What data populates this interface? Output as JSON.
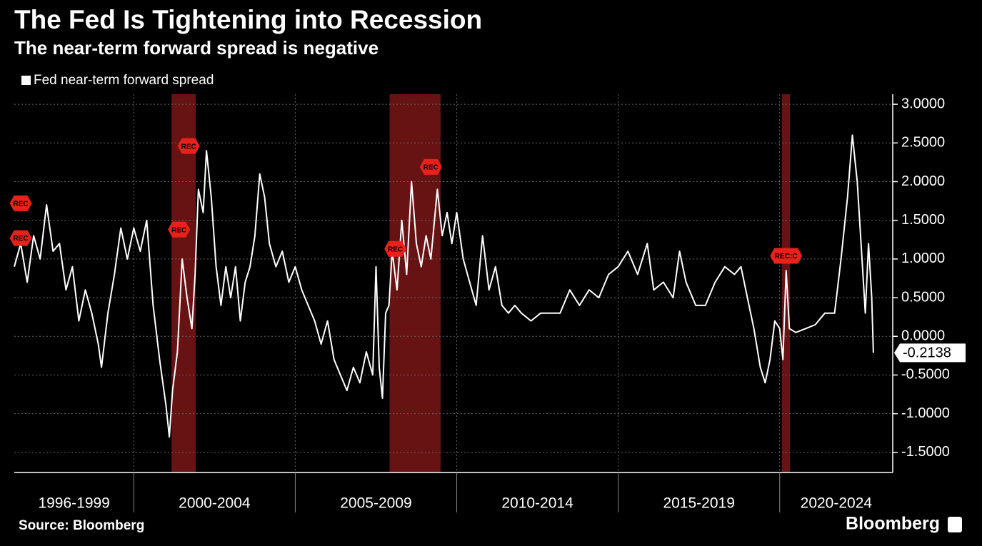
{
  "chart_data": {
    "type": "line",
    "title": "The Fed Is Tightening into Recession",
    "subtitle": "The near-term forward spread is negative",
    "source": "Source: Bloomberg",
    "brand": "Bloomberg",
    "x": [
      1996.3,
      1996.5,
      1996.7,
      1996.9,
      1997.1,
      1997.3,
      1997.5,
      1997.7,
      1997.9,
      1998.1,
      1998.3,
      1998.5,
      1998.7,
      1998.9,
      1999.0,
      1999.2,
      1999.4,
      1999.6,
      1999.8,
      2000.0,
      2000.2,
      2000.4,
      2000.6,
      2000.8,
      2001.0,
      2001.1,
      2001.2,
      2001.35,
      2001.5,
      2001.65,
      2001.8,
      2001.9,
      2002.0,
      2002.15,
      2002.25,
      2002.4,
      2002.55,
      2002.7,
      2002.85,
      2003.0,
      2003.15,
      2003.3,
      2003.45,
      2003.6,
      2003.75,
      2003.9,
      2004.05,
      2004.2,
      2004.4,
      2004.6,
      2004.8,
      2005.0,
      2005.2,
      2005.4,
      2005.6,
      2005.8,
      2006.0,
      2006.2,
      2006.4,
      2006.6,
      2006.8,
      2007.0,
      2007.2,
      2007.4,
      2007.5,
      2007.6,
      2007.7,
      2007.8,
      2007.9,
      2008.0,
      2008.15,
      2008.3,
      2008.45,
      2008.6,
      2008.75,
      2008.9,
      2009.05,
      2009.2,
      2009.4,
      2009.55,
      2009.7,
      2009.85,
      2010.0,
      2010.2,
      2010.4,
      2010.6,
      2010.8,
      2011.0,
      2011.2,
      2011.4,
      2011.6,
      2011.8,
      2012.0,
      2012.3,
      2012.6,
      2012.9,
      2013.2,
      2013.5,
      2013.8,
      2014.1,
      2014.4,
      2014.7,
      2015.0,
      2015.3,
      2015.6,
      2015.9,
      2016.1,
      2016.4,
      2016.7,
      2016.9,
      2017.1,
      2017.4,
      2017.7,
      2018.0,
      2018.3,
      2018.6,
      2018.8,
      2019.0,
      2019.2,
      2019.4,
      2019.55,
      2019.7,
      2019.85,
      2020.0,
      2020.1,
      2020.2,
      2020.3,
      2020.5,
      2020.8,
      2021.1,
      2021.4,
      2021.7,
      2021.9,
      2022.1,
      2022.25,
      2022.4,
      2022.55,
      2022.65,
      2022.75,
      2022.85,
      2022.9
    ],
    "series": [
      {
        "name": "Fed near-term forward spread",
        "color": "#ffffff",
        "values": [
          0.9,
          1.2,
          0.7,
          1.3,
          1.0,
          1.7,
          1.1,
          1.2,
          0.6,
          0.9,
          0.2,
          0.6,
          0.3,
          -0.1,
          -0.4,
          0.3,
          0.8,
          1.4,
          1.0,
          1.4,
          1.1,
          1.5,
          0.4,
          -0.3,
          -0.9,
          -1.3,
          -0.7,
          -0.2,
          1.0,
          0.5,
          0.1,
          0.8,
          1.9,
          1.6,
          2.4,
          1.8,
          0.9,
          0.4,
          0.9,
          0.5,
          0.9,
          0.2,
          0.7,
          0.9,
          1.3,
          2.1,
          1.8,
          1.2,
          0.9,
          1.1,
          0.7,
          0.9,
          0.6,
          0.4,
          0.2,
          -0.1,
          0.2,
          -0.3,
          -0.5,
          -0.7,
          -0.4,
          -0.6,
          -0.2,
          -0.5,
          0.9,
          -0.4,
          -0.8,
          0.3,
          0.4,
          1.1,
          0.6,
          1.5,
          0.8,
          2.0,
          1.2,
          0.9,
          1.3,
          1.0,
          1.9,
          1.3,
          1.6,
          1.2,
          1.6,
          1.0,
          0.7,
          0.4,
          1.3,
          0.6,
          0.9,
          0.4,
          0.3,
          0.4,
          0.3,
          0.2,
          0.3,
          0.3,
          0.3,
          0.6,
          0.4,
          0.6,
          0.5,
          0.8,
          0.9,
          1.1,
          0.8,
          1.2,
          0.6,
          0.7,
          0.5,
          1.1,
          0.7,
          0.4,
          0.4,
          0.7,
          0.9,
          0.8,
          0.9,
          0.5,
          0.1,
          -0.4,
          -0.6,
          -0.3,
          0.2,
          0.1,
          -0.3,
          0.85,
          0.1,
          0.05,
          0.1,
          0.15,
          0.3,
          0.3,
          1.0,
          1.8,
          2.6,
          2.0,
          1.0,
          0.3,
          1.2,
          0.5,
          -0.2138
        ]
      }
    ],
    "xlim": [
      1996.3,
      2023.5
    ],
    "ylim": [
      -1.76,
      3.13
    ],
    "yticks": [
      {
        "value": 3,
        "label": "3.0000"
      },
      {
        "value": 2.5,
        "label": "2.5000"
      },
      {
        "value": 2,
        "label": "2.0000"
      },
      {
        "value": 1.5,
        "label": "1.5000"
      },
      {
        "value": 1,
        "label": "1.0000"
      },
      {
        "value": 0.5,
        "label": "0.5000"
      },
      {
        "value": 0,
        "label": "0.0000"
      },
      {
        "value": -0.5,
        "label": "-0.5000"
      },
      {
        "value": -1,
        "label": "-1.0000"
      },
      {
        "value": -1.5,
        "label": "-1.5000"
      }
    ],
    "period_breaks": [
      2000,
      2005,
      2010,
      2015,
      2020
    ],
    "period_labels": [
      "1996-1999",
      "2000-2004",
      "2005-2009",
      "2010-2014",
      "2015-2019",
      "2020-2024"
    ],
    "recessions": [
      [
        2001.17,
        2001.92
      ],
      [
        2007.92,
        2009.5
      ],
      [
        2020.07,
        2020.32
      ]
    ],
    "recession_color": "#8b1a1a",
    "annotations": [
      {
        "label": "REC",
        "x": 1996.5,
        "y": 1.72
      },
      {
        "label": "REC",
        "x": 1996.5,
        "y": 1.27
      },
      {
        "label": "REC",
        "x": 2001.7,
        "y": 2.46
      },
      {
        "label": "REC",
        "x": 2001.4,
        "y": 1.38
      },
      {
        "label": "REC",
        "x": 2008.1,
        "y": 1.13
      },
      {
        "label": "REC",
        "x": 2009.2,
        "y": 2.19
      },
      {
        "label": "REC:C",
        "x": 2020.2,
        "y": 1.04
      }
    ],
    "annotation_color": "#e8221b",
    "grid": true
  }
}
